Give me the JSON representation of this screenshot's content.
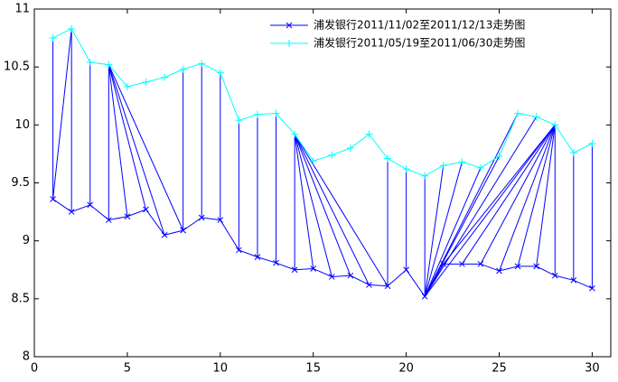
{
  "chart_data": {
    "type": "line",
    "x": [
      1,
      2,
      3,
      4,
      5,
      6,
      7,
      8,
      9,
      10,
      11,
      12,
      13,
      14,
      15,
      16,
      17,
      18,
      19,
      20,
      21,
      22,
      23,
      24,
      25,
      26,
      27,
      28,
      29,
      30
    ],
    "series": [
      {
        "name": "浦发银行2011/11/02至2011/12/13走势图",
        "color": "#0000ff",
        "marker": "x",
        "values": [
          9.36,
          9.25,
          9.31,
          9.18,
          9.21,
          9.27,
          9.05,
          9.09,
          9.2,
          9.18,
          8.92,
          8.86,
          8.81,
          8.75,
          8.76,
          8.69,
          8.7,
          8.62,
          8.61,
          8.75,
          8.52,
          8.8,
          8.8,
          8.8,
          8.74,
          8.78,
          8.78,
          8.7,
          8.66,
          8.59
        ]
      },
      {
        "name": "浦发银行2011/05/19至2011/06/30走势图",
        "color": "#00ffff",
        "marker": "+",
        "values": [
          10.75,
          10.83,
          10.54,
          10.52,
          10.33,
          10.37,
          10.41,
          10.48,
          10.53,
          10.45,
          10.04,
          10.09,
          10.1,
          9.92,
          9.69,
          9.74,
          9.8,
          9.92,
          9.71,
          9.62,
          9.56,
          9.65,
          9.68,
          9.63,
          9.73,
          10.1,
          10.07,
          10.0,
          9.76,
          9.84
        ]
      }
    ],
    "alignment": [
      [
        1,
        1
      ],
      [
        1,
        2
      ],
      [
        2,
        2
      ],
      [
        3,
        3
      ],
      [
        4,
        4
      ],
      [
        5,
        4
      ],
      [
        6,
        4
      ],
      [
        7,
        4
      ],
      [
        8,
        4
      ],
      [
        8,
        8
      ],
      [
        9,
        9
      ],
      [
        10,
        10
      ],
      [
        11,
        11
      ],
      [
        12,
        12
      ],
      [
        13,
        13
      ],
      [
        14,
        14
      ],
      [
        15,
        14
      ],
      [
        16,
        14
      ],
      [
        17,
        14
      ],
      [
        18,
        14
      ],
      [
        19,
        14
      ],
      [
        19,
        19
      ],
      [
        20,
        20
      ],
      [
        21,
        21
      ],
      [
        21,
        22
      ],
      [
        21,
        23
      ],
      [
        21,
        24
      ],
      [
        21,
        25
      ],
      [
        21,
        26
      ],
      [
        21,
        27
      ],
      [
        21,
        28
      ],
      [
        22,
        28
      ],
      [
        23,
        28
      ],
      [
        24,
        28
      ],
      [
        25,
        28
      ],
      [
        26,
        28
      ],
      [
        27,
        28
      ],
      [
        28,
        28
      ],
      [
        29,
        29
      ],
      [
        30,
        30
      ]
    ],
    "xlim": [
      0,
      31
    ],
    "xticks": [
      0,
      5,
      10,
      15,
      20,
      25,
      30
    ],
    "ylim": [
      8,
      11
    ],
    "yticks": [
      8,
      8.5,
      9,
      9.5,
      10,
      10.5,
      11
    ],
    "legend": "top-right"
  }
}
